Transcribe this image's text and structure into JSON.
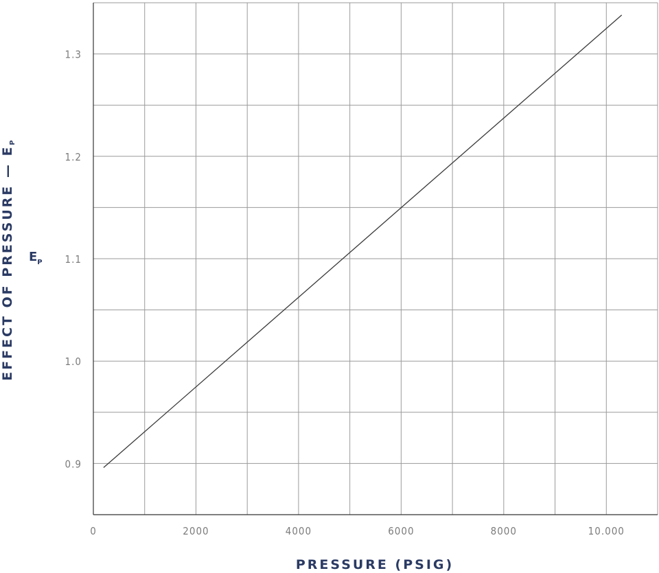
{
  "chart_data": {
    "type": "line",
    "xlabel": "PRESSURE (PSIG)",
    "ylabel": "EFFECT OF PRESSURE — E",
    "ylabel_subscript": "P",
    "inner_label": "E",
    "inner_label_subscript": "P",
    "xlim": [
      0,
      11000
    ],
    "ylim": [
      0.85,
      1.35
    ],
    "x_ticks": [
      0,
      2000,
      4000,
      6000,
      8000,
      10000
    ],
    "x_tick_labels": [
      "0",
      "2000",
      "4000",
      "6000",
      "8000",
      "10.000"
    ],
    "y_ticks": [
      0.9,
      1.0,
      1.1,
      1.2,
      1.3
    ],
    "y_tick_labels": [
      "0.9",
      "1.0",
      "1.1",
      "1.2",
      "1.3"
    ],
    "grid": true,
    "series": [
      {
        "x": [
          200,
          10300
        ],
        "y": [
          0.896,
          1.338
        ]
      }
    ],
    "colors": {
      "line": "#3a3a3a",
      "grid": "#9a9a9a",
      "axis": "#333333",
      "title": "#2a3a63",
      "tick": "#7c7c7c"
    }
  }
}
